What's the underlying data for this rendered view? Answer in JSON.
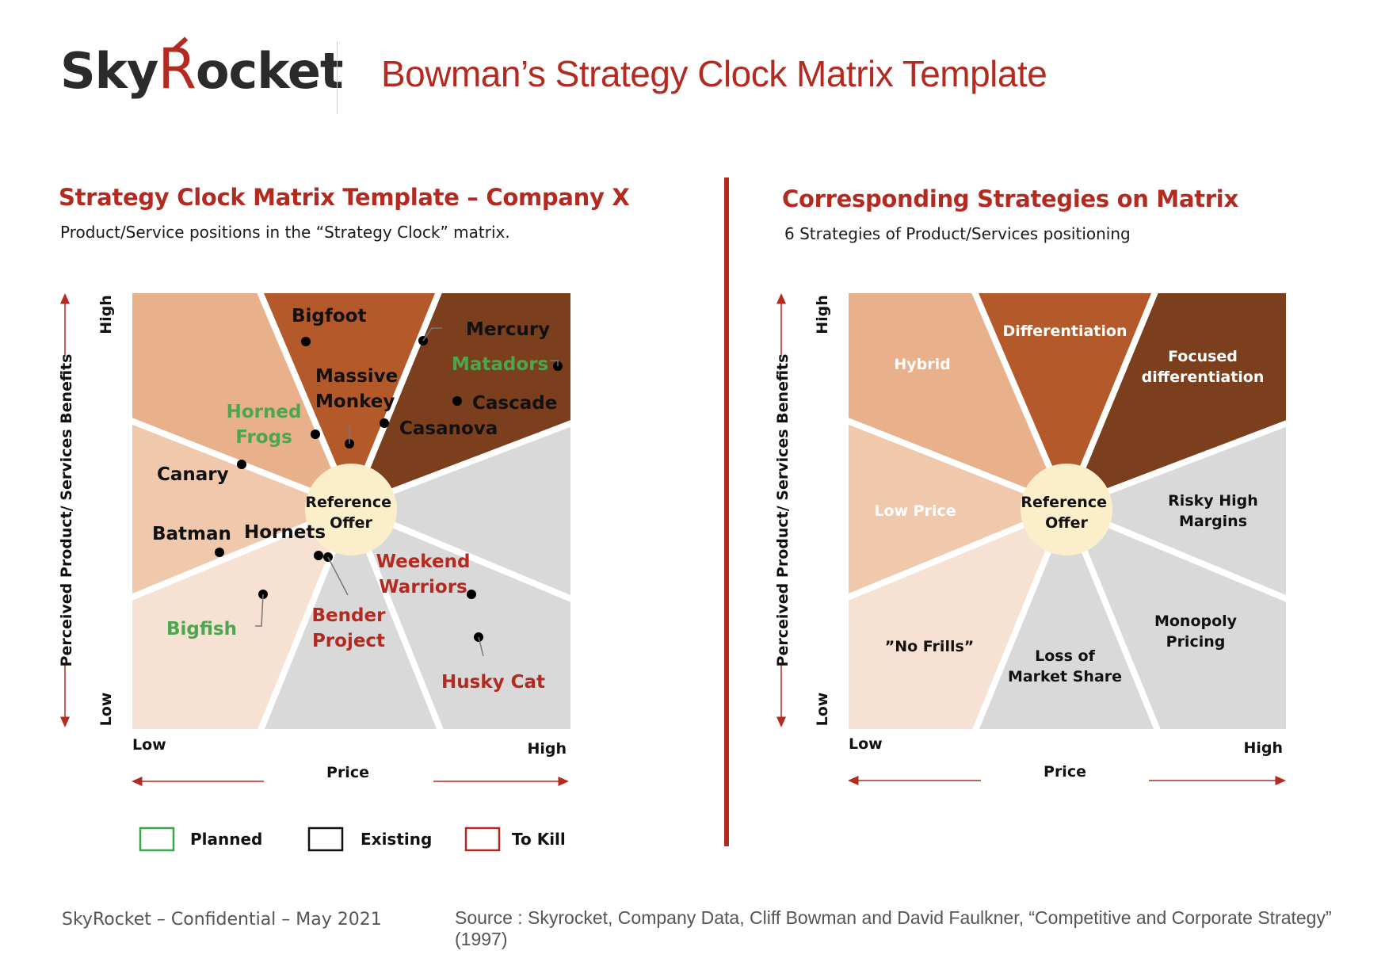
{
  "header": {
    "logo_text_a": "Sky",
    "logo_text_b": "R",
    "logo_text_c": "ocket",
    "title": "Bowman’s Strategy Clock Matrix Template"
  },
  "left_panel": {
    "title": "Strategy Clock Matrix Template – Company X",
    "subtitle": "Product/Service positions in the “Strategy Clock” matrix.",
    "y_axis_label": "Perceived Product/ Services Benefits",
    "y_high": "High",
    "y_low": "Low",
    "x_axis_label": "Price",
    "x_low": "Low",
    "x_high": "High",
    "center_label": [
      "Reference",
      "Offer"
    ],
    "products": [
      {
        "lines": [
          "Bigfoot"
        ],
        "status": "existing"
      },
      {
        "lines": [
          "Mercury"
        ],
        "status": "existing"
      },
      {
        "lines": [
          "Matadors"
        ],
        "status": "planned"
      },
      {
        "lines": [
          "Massive",
          "Monkey"
        ],
        "status": "existing"
      },
      {
        "lines": [
          "Cascade"
        ],
        "status": "existing"
      },
      {
        "lines": [
          "Casanova"
        ],
        "status": "existing"
      },
      {
        "lines": [
          "Horned",
          "Frogs"
        ],
        "status": "planned"
      },
      {
        "lines": [
          "Canary"
        ],
        "status": "existing"
      },
      {
        "lines": [
          "Batman"
        ],
        "status": "existing"
      },
      {
        "lines": [
          "Hornets"
        ],
        "status": "existing"
      },
      {
        "lines": [
          "Weekend",
          "Warriors"
        ],
        "status": "to_kill"
      },
      {
        "lines": [
          "Bender",
          "Project"
        ],
        "status": "to_kill"
      },
      {
        "lines": [
          "Bigfish"
        ],
        "status": "planned"
      },
      {
        "lines": [
          "Husky Cat"
        ],
        "status": "to_kill"
      }
    ],
    "legend": [
      {
        "label": "Planned",
        "color": "#3aa84a"
      },
      {
        "label": "Existing",
        "color": "#111111"
      },
      {
        "label": "To Kill",
        "color": "#b32a20"
      }
    ]
  },
  "right_panel": {
    "title": "Corresponding Strategies on Matrix",
    "subtitle": "6 Strategies of Product/Services positioning",
    "y_axis_label": "Perceived Product/ Services Benefits",
    "y_high": "High",
    "y_low": "Low",
    "x_axis_label": "Price",
    "x_low": "Low",
    "x_high": "High",
    "center_label": [
      "Reference",
      "Offer"
    ],
    "strategies": [
      {
        "lines": [
          "Differentiation"
        ]
      },
      {
        "lines": [
          "Hybrid"
        ]
      },
      {
        "lines": [
          "Focused",
          "differentiation"
        ]
      },
      {
        "lines": [
          "Low Price"
        ]
      },
      {
        "lines": [
          "Risky High",
          "Margins"
        ]
      },
      {
        "lines": [
          "Monopoly",
          "Pricing"
        ]
      },
      {
        "lines": [
          "”No Frills”"
        ]
      },
      {
        "lines": [
          "Loss of",
          "Market Share"
        ]
      }
    ]
  },
  "colors": {
    "accent": "#b32a20",
    "hybrid": "#e9b08c",
    "differentiation": "#b45a2a",
    "focused_differentiation": "#7b3f1d",
    "low_price": "#f0c9ad",
    "no_frills": "#f6e1d3",
    "failure_zone": "#d9d9d9",
    "reference_offer": "#fbeecb",
    "planned": "#3aa84a",
    "to_kill": "#b32a20"
  },
  "footer": {
    "left": "SkyRocket – Confidential – May 2021",
    "right": "Source : Skyrocket, Company Data, Cliff Bowman and David Faulkner, “Competitive and Corporate Strategy” (1997)"
  }
}
